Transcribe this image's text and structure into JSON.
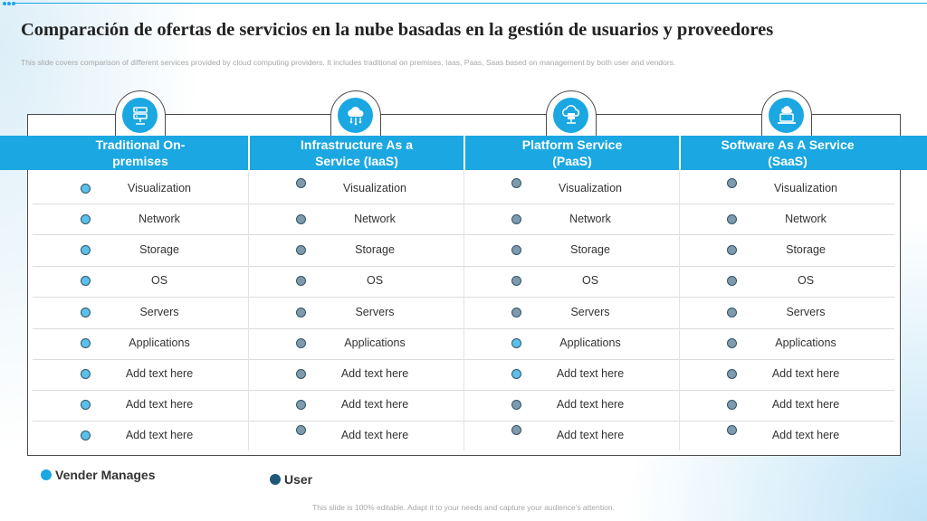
{
  "title": "Comparación de ofertas de servicios en la nube basadas en la gestión de usuarios y proveedores",
  "subtitle": "This slide covers comparison of different services provided by cloud computing providers. It includes traditional on premises, Iaas, Paas, Saas based on management by both user and vendors.",
  "columns": [
    {
      "header": "Traditional On-premises",
      "icon": "server-rack-icon"
    },
    {
      "header": "Infrastructure As a Service (IaaS)",
      "icon": "cloud-network-icon"
    },
    {
      "header": "Platform Service (PaaS)",
      "icon": "cloud-server-icon"
    },
    {
      "header": "Software As A Service (SaaS)",
      "icon": "cloud-laptop-icon"
    }
  ],
  "rows": [
    "Visualization",
    "Network",
    "Storage",
    "OS",
    "Servers",
    "Applications",
    "Add text here",
    "Add text here",
    "Add text here"
  ],
  "management": [
    [
      "vendor",
      "vendor",
      "vendor",
      "vendor",
      "vendor",
      "vendor",
      "vendor",
      "vendor",
      "vendor"
    ],
    [
      "user",
      "user",
      "user",
      "user",
      "user",
      "user",
      "user",
      "user",
      "user"
    ],
    [
      "user",
      "user",
      "user",
      "user",
      "user",
      "vendor",
      "vendor",
      "user",
      "user"
    ],
    [
      "user",
      "user",
      "user",
      "user",
      "user",
      "user",
      "user",
      "user",
      "user"
    ]
  ],
  "legend": {
    "vendor": {
      "label": "Vender Manages",
      "color": "#1ba7e2"
    },
    "user": {
      "label": "User",
      "color": "#1e5a78"
    }
  },
  "colors": {
    "accent": "#1ba7e2",
    "vendor_dot": "#5cc0ea",
    "user_dot": "#7f99ad"
  },
  "footer": "This slide is 100% editable. Adapt it to your needs and capture your audience's attention."
}
